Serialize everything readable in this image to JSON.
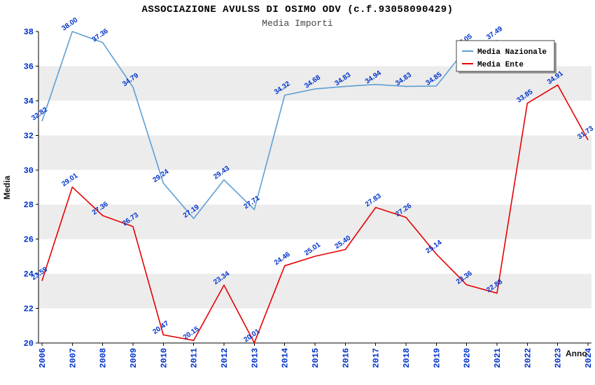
{
  "header": {
    "title": "ASSOCIAZIONE AVULSS DI OSIMO ODV (c.f.93058090429)",
    "subtitle": "Media Importi"
  },
  "chart_data": {
    "type": "line",
    "x": [
      2006,
      2007,
      2008,
      2009,
      2010,
      2011,
      2012,
      2013,
      2014,
      2015,
      2016,
      2017,
      2018,
      2019,
      2020,
      2021,
      2022,
      2023,
      2024
    ],
    "xlabel": "Anno",
    "ylabel": "Media",
    "ylim": [
      20,
      38
    ],
    "yticks": [
      20,
      22,
      24,
      26,
      28,
      30,
      32,
      34,
      36,
      38
    ],
    "grid": "alternating-horizontal-bands",
    "legend_position": "top-right",
    "colors": {
      "axis_label": "#0033cc",
      "value_label": "#0033cc",
      "band_base": "#ffffff",
      "band_alt": "#ececec",
      "axis_line": "#000000",
      "legend_border": "#444444",
      "legend_shadow": "#999999"
    },
    "series": [
      {
        "name": "Media Nazionale",
        "color": "#5e9fd4",
        "values": [
          32.82,
          38.0,
          37.36,
          34.79,
          29.24,
          27.19,
          29.43,
          27.71,
          34.32,
          34.68,
          34.83,
          34.94,
          34.83,
          34.85,
          37.05,
          37.49,
          null,
          null,
          null
        ]
      },
      {
        "name": "Media Ente",
        "color": "#e60000",
        "values": [
          23.59,
          29.01,
          27.36,
          26.73,
          20.47,
          20.15,
          23.34,
          20.01,
          24.46,
          25.01,
          25.4,
          27.83,
          27.26,
          25.14,
          23.36,
          22.88,
          33.85,
          34.91,
          31.73
        ]
      }
    ]
  }
}
